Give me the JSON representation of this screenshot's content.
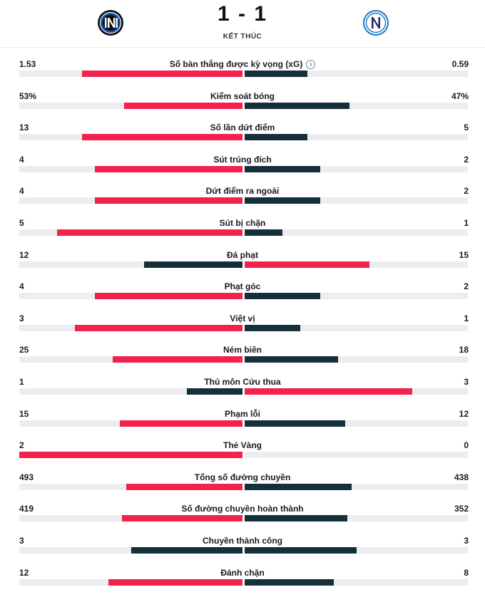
{
  "match": {
    "score": "1 - 1",
    "status": "KẾT THÚC",
    "home_logo_icon": "inter-crest-icon",
    "away_logo_icon": "napoli-crest-icon"
  },
  "colors": {
    "leader": "#f1224c",
    "trailer": "#15303a",
    "track": "#ededf0"
  },
  "stats": [
    {
      "label": "Số bàn thắng được kỳ vọng (xG)",
      "home": "1.53",
      "away": "0.59",
      "info": true,
      "home_fraction": 0.72,
      "away_fraction": 0.28
    },
    {
      "label": "Kiểm soát bóng",
      "home": "53%",
      "away": "47%",
      "home_fraction": 0.53,
      "away_fraction": 0.47
    },
    {
      "label": "Số lần dứt điểm",
      "home": "13",
      "away": "5",
      "home_fraction": 0.72,
      "away_fraction": 0.28
    },
    {
      "label": "Sút trúng đích",
      "home": "4",
      "away": "2",
      "home_fraction": 0.66,
      "away_fraction": 0.34
    },
    {
      "label": "Dứt điểm ra ngoài",
      "home": "4",
      "away": "2",
      "home_fraction": 0.66,
      "away_fraction": 0.34
    },
    {
      "label": "Sút bị chặn",
      "home": "5",
      "away": "1",
      "home_fraction": 0.83,
      "away_fraction": 0.17
    },
    {
      "label": "Đá phạt",
      "home": "12",
      "away": "15",
      "home_fraction": 0.44,
      "away_fraction": 0.56
    },
    {
      "label": "Phạt góc",
      "home": "4",
      "away": "2",
      "home_fraction": 0.66,
      "away_fraction": 0.34
    },
    {
      "label": "Việt vị",
      "home": "3",
      "away": "1",
      "home_fraction": 0.75,
      "away_fraction": 0.25
    },
    {
      "label": "Ném biên",
      "home": "25",
      "away": "18",
      "home_fraction": 0.58,
      "away_fraction": 0.42
    },
    {
      "label": "Thủ môn Cứu thua",
      "home": "1",
      "away": "3",
      "home_fraction": 0.25,
      "away_fraction": 0.75
    },
    {
      "label": "Phạm lỗi",
      "home": "15",
      "away": "12",
      "home_fraction": 0.55,
      "away_fraction": 0.45
    },
    {
      "label": "Thẻ Vàng",
      "home": "2",
      "away": "0",
      "home_fraction": 1.0,
      "away_fraction": 0.0
    },
    {
      "label": "Tổng số đường chuyền",
      "home": "493",
      "away": "438",
      "home_fraction": 0.52,
      "away_fraction": 0.48
    },
    {
      "label": "Số đường chuyền hoàn thành",
      "home": "419",
      "away": "352",
      "home_fraction": 0.54,
      "away_fraction": 0.46
    },
    {
      "label": "Chuyền thành công",
      "home": "3",
      "away": "3",
      "home_fraction": 0.5,
      "away_fraction": 0.5,
      "tie": true
    },
    {
      "label": "Đánh chặn",
      "home": "12",
      "away": "8",
      "home_fraction": 0.6,
      "away_fraction": 0.4
    }
  ]
}
